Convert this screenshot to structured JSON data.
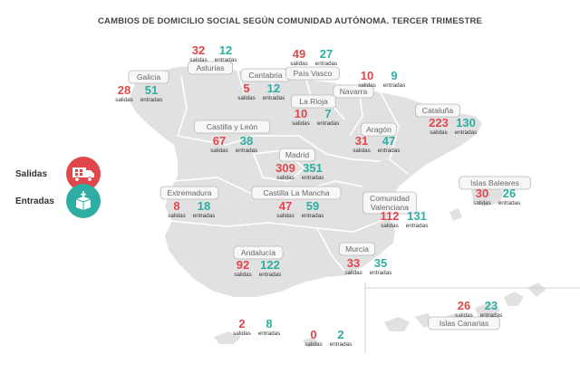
{
  "chart_data": {
    "type": "map",
    "title": "CAMBIOS DE DOMICILIO SOCIAL SEGÚN COMUNIDAD AUTÓNOMA. TERCER TRIMESTRE",
    "legend": {
      "salidas": "Salidas",
      "entradas": "Entradas"
    },
    "colors": {
      "salidas": "#e0474b",
      "entradas": "#2eaea2",
      "land": "#e1e1e1",
      "border": "#ffffff"
    },
    "out_label": "salidas",
    "in_label": "entradas",
    "regions": [
      {
        "name": "Galicia",
        "salidas": 28,
        "entradas": 51
      },
      {
        "name": "Asturias",
        "salidas": 32,
        "entradas": 12
      },
      {
        "name": "Cantabria",
        "salidas": 5,
        "entradas": 12
      },
      {
        "name": "País Vasco",
        "salidas": 49,
        "entradas": 27
      },
      {
        "name": "Navarra",
        "salidas": 10,
        "entradas": 9
      },
      {
        "name": "La Rioja",
        "salidas": 10,
        "entradas": 7
      },
      {
        "name": "Castilla y León",
        "salidas": 67,
        "entradas": 38
      },
      {
        "name": "Aragón",
        "salidas": 31,
        "entradas": 47
      },
      {
        "name": "Cataluña",
        "salidas": 223,
        "entradas": 130
      },
      {
        "name": "Madrid",
        "salidas": 309,
        "entradas": 351
      },
      {
        "name": "Extremadura",
        "salidas": 8,
        "entradas": 18
      },
      {
        "name": "Castilla La Mancha",
        "salidas": 47,
        "entradas": 59
      },
      {
        "name": "Comunidad Valenciana",
        "salidas": 112,
        "entradas": 131
      },
      {
        "name": "Islas Baleares",
        "salidas": 30,
        "entradas": 26
      },
      {
        "name": "Andalucía",
        "salidas": 92,
        "entradas": 122
      },
      {
        "name": "Murcia",
        "salidas": 33,
        "entradas": 35
      },
      {
        "name": "Islas Canarias",
        "salidas": 26,
        "entradas": 23
      },
      {
        "name": "",
        "salidas": 2,
        "entradas": 8
      },
      {
        "name": "",
        "salidas": 0,
        "entradas": 2
      }
    ]
  }
}
